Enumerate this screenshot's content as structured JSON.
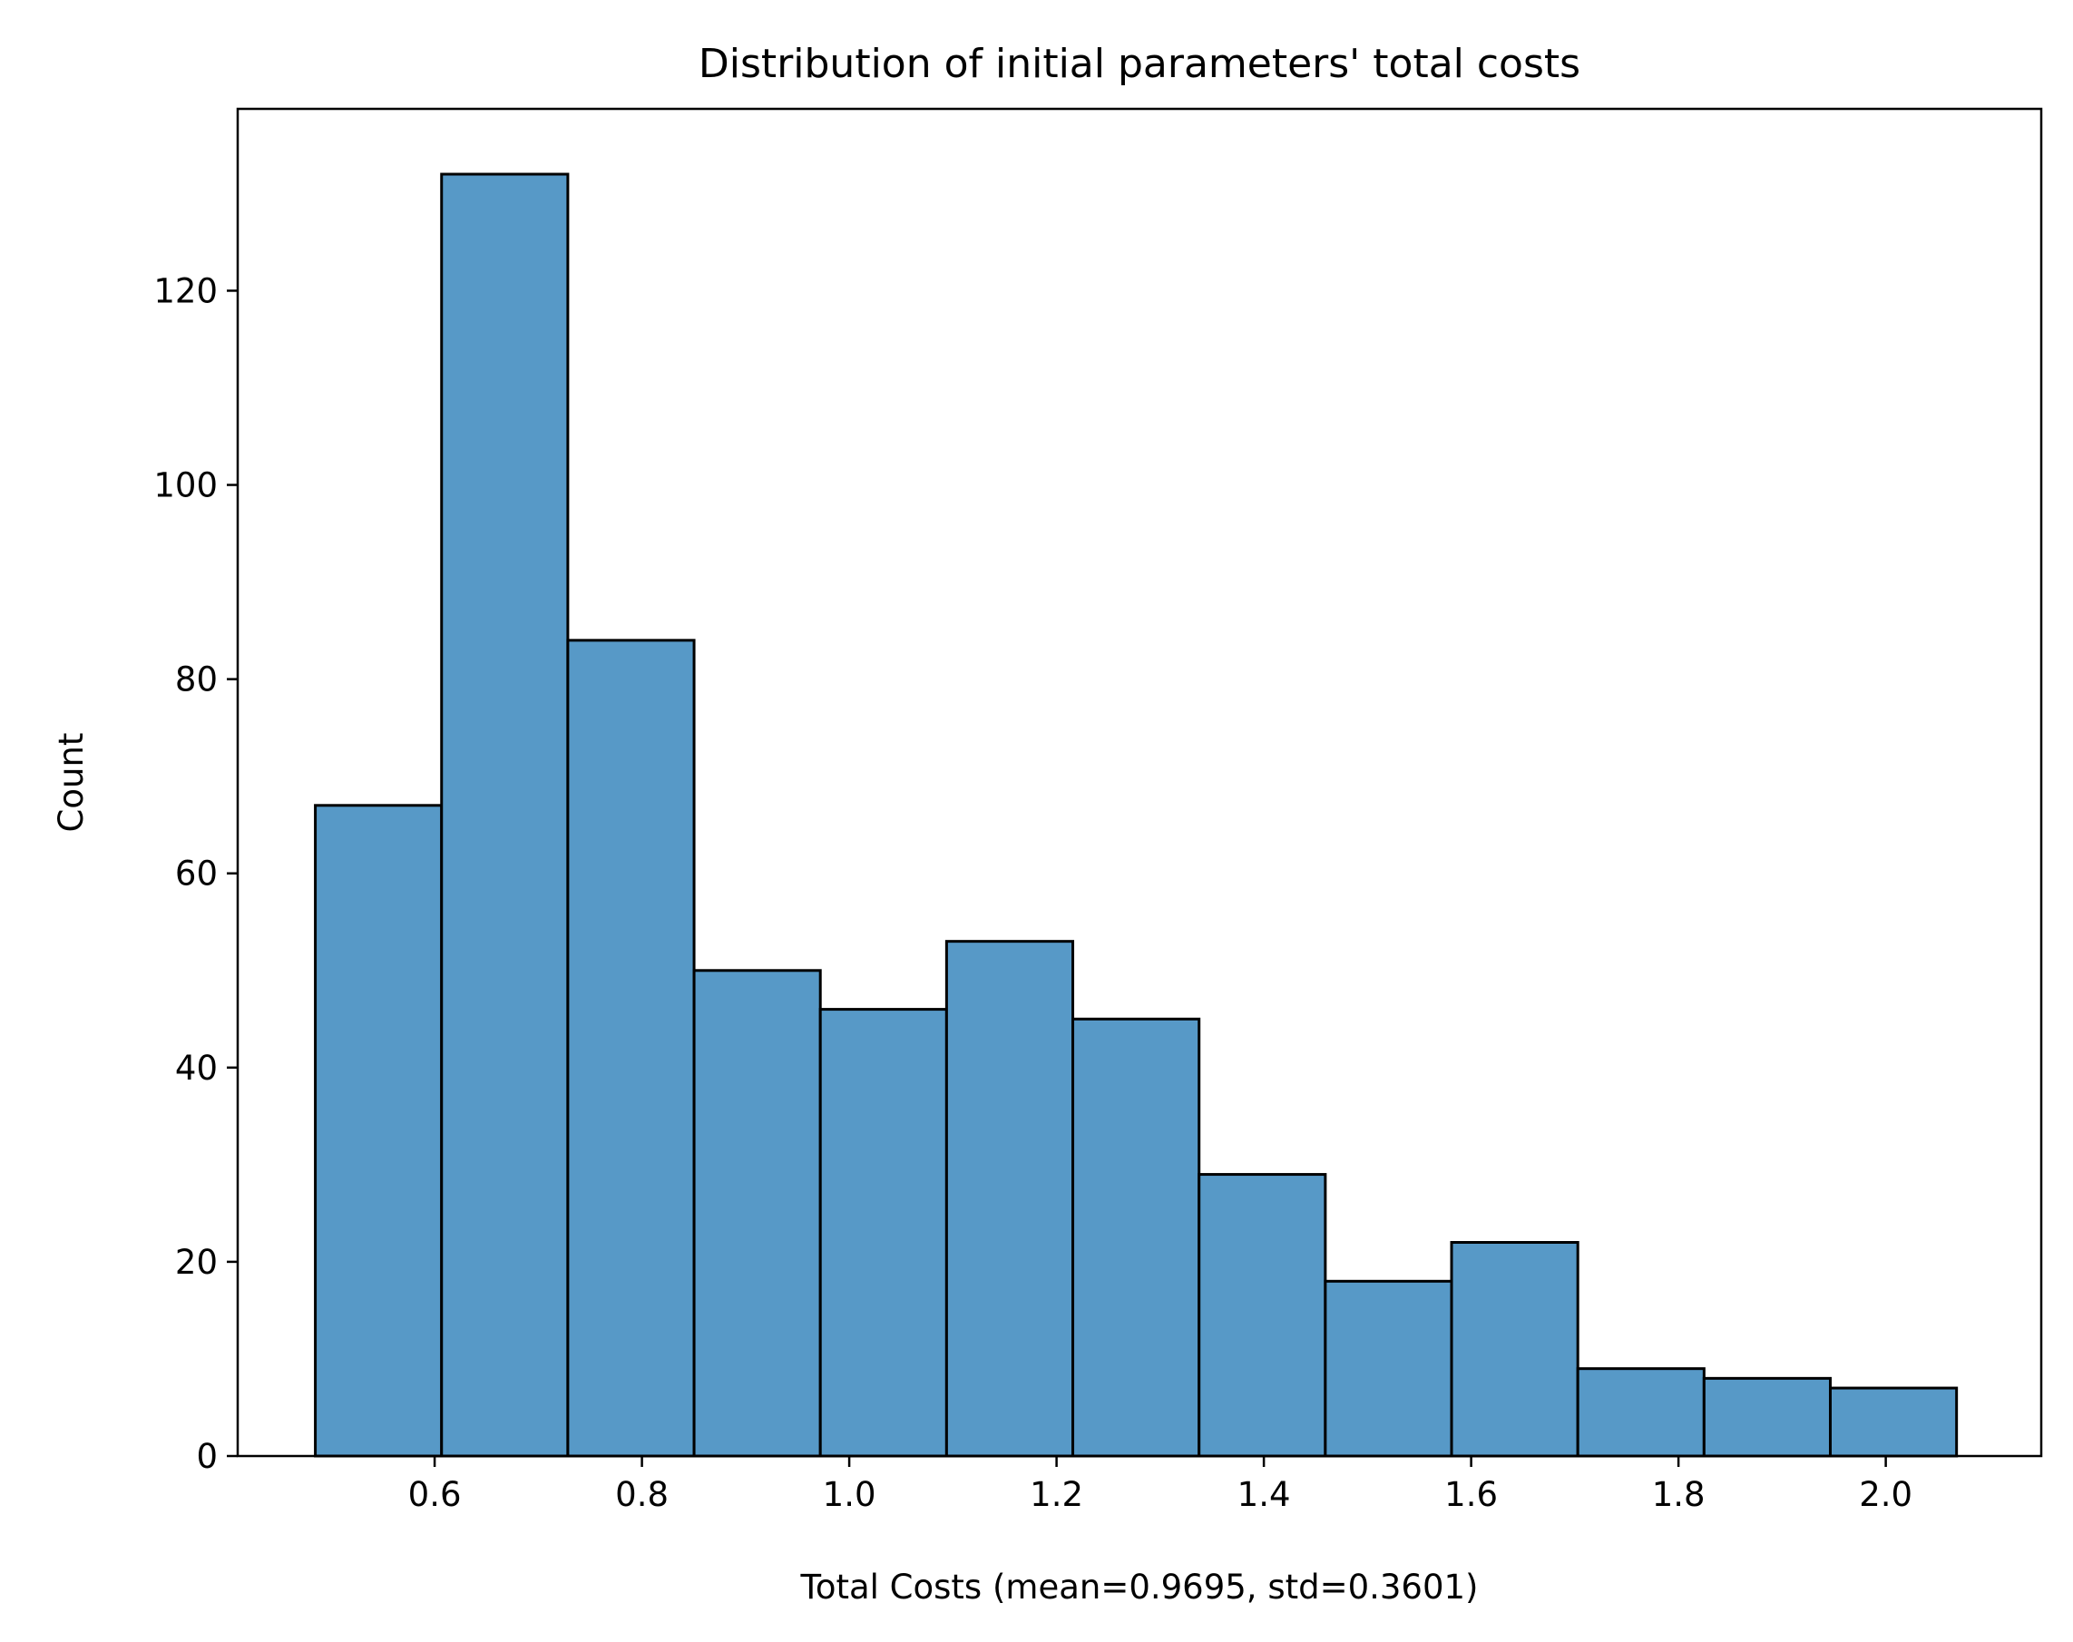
{
  "chart_data": {
    "type": "bar",
    "title": "Distribution of initial parameters' total costs",
    "xlabel": "Total Costs (mean=0.9695, std=0.3601)",
    "ylabel": "Count",
    "xlim": [
      0.41,
      2.15
    ],
    "ylim": [
      0,
      132
    ],
    "bin_edges": [
      0.4849,
      0.6067,
      0.7285,
      0.8503,
      0.9721,
      1.0939,
      1.2157,
      1.3375,
      1.4593,
      1.5811,
      1.7029,
      1.8247,
      1.9465,
      2.0683
    ],
    "values": [
      67,
      132,
      84,
      50,
      46,
      53,
      45,
      29,
      18,
      22,
      9,
      8,
      7
    ],
    "x_ticks": [
      0.6,
      0.8,
      1.0,
      1.2,
      1.4,
      1.6,
      1.8,
      2.0
    ],
    "x_tick_labels": [
      "0.6",
      "0.8",
      "1.0",
      "1.2",
      "1.4",
      "1.6",
      "1.8",
      "2.0"
    ],
    "y_ticks": [
      0,
      20,
      40,
      60,
      80,
      100,
      120
    ],
    "y_tick_labels": [
      "0",
      "20",
      "40",
      "60",
      "80",
      "100",
      "120"
    ],
    "bar_color": "#5799c7",
    "edge_color": "#000000",
    "grid": false
  }
}
